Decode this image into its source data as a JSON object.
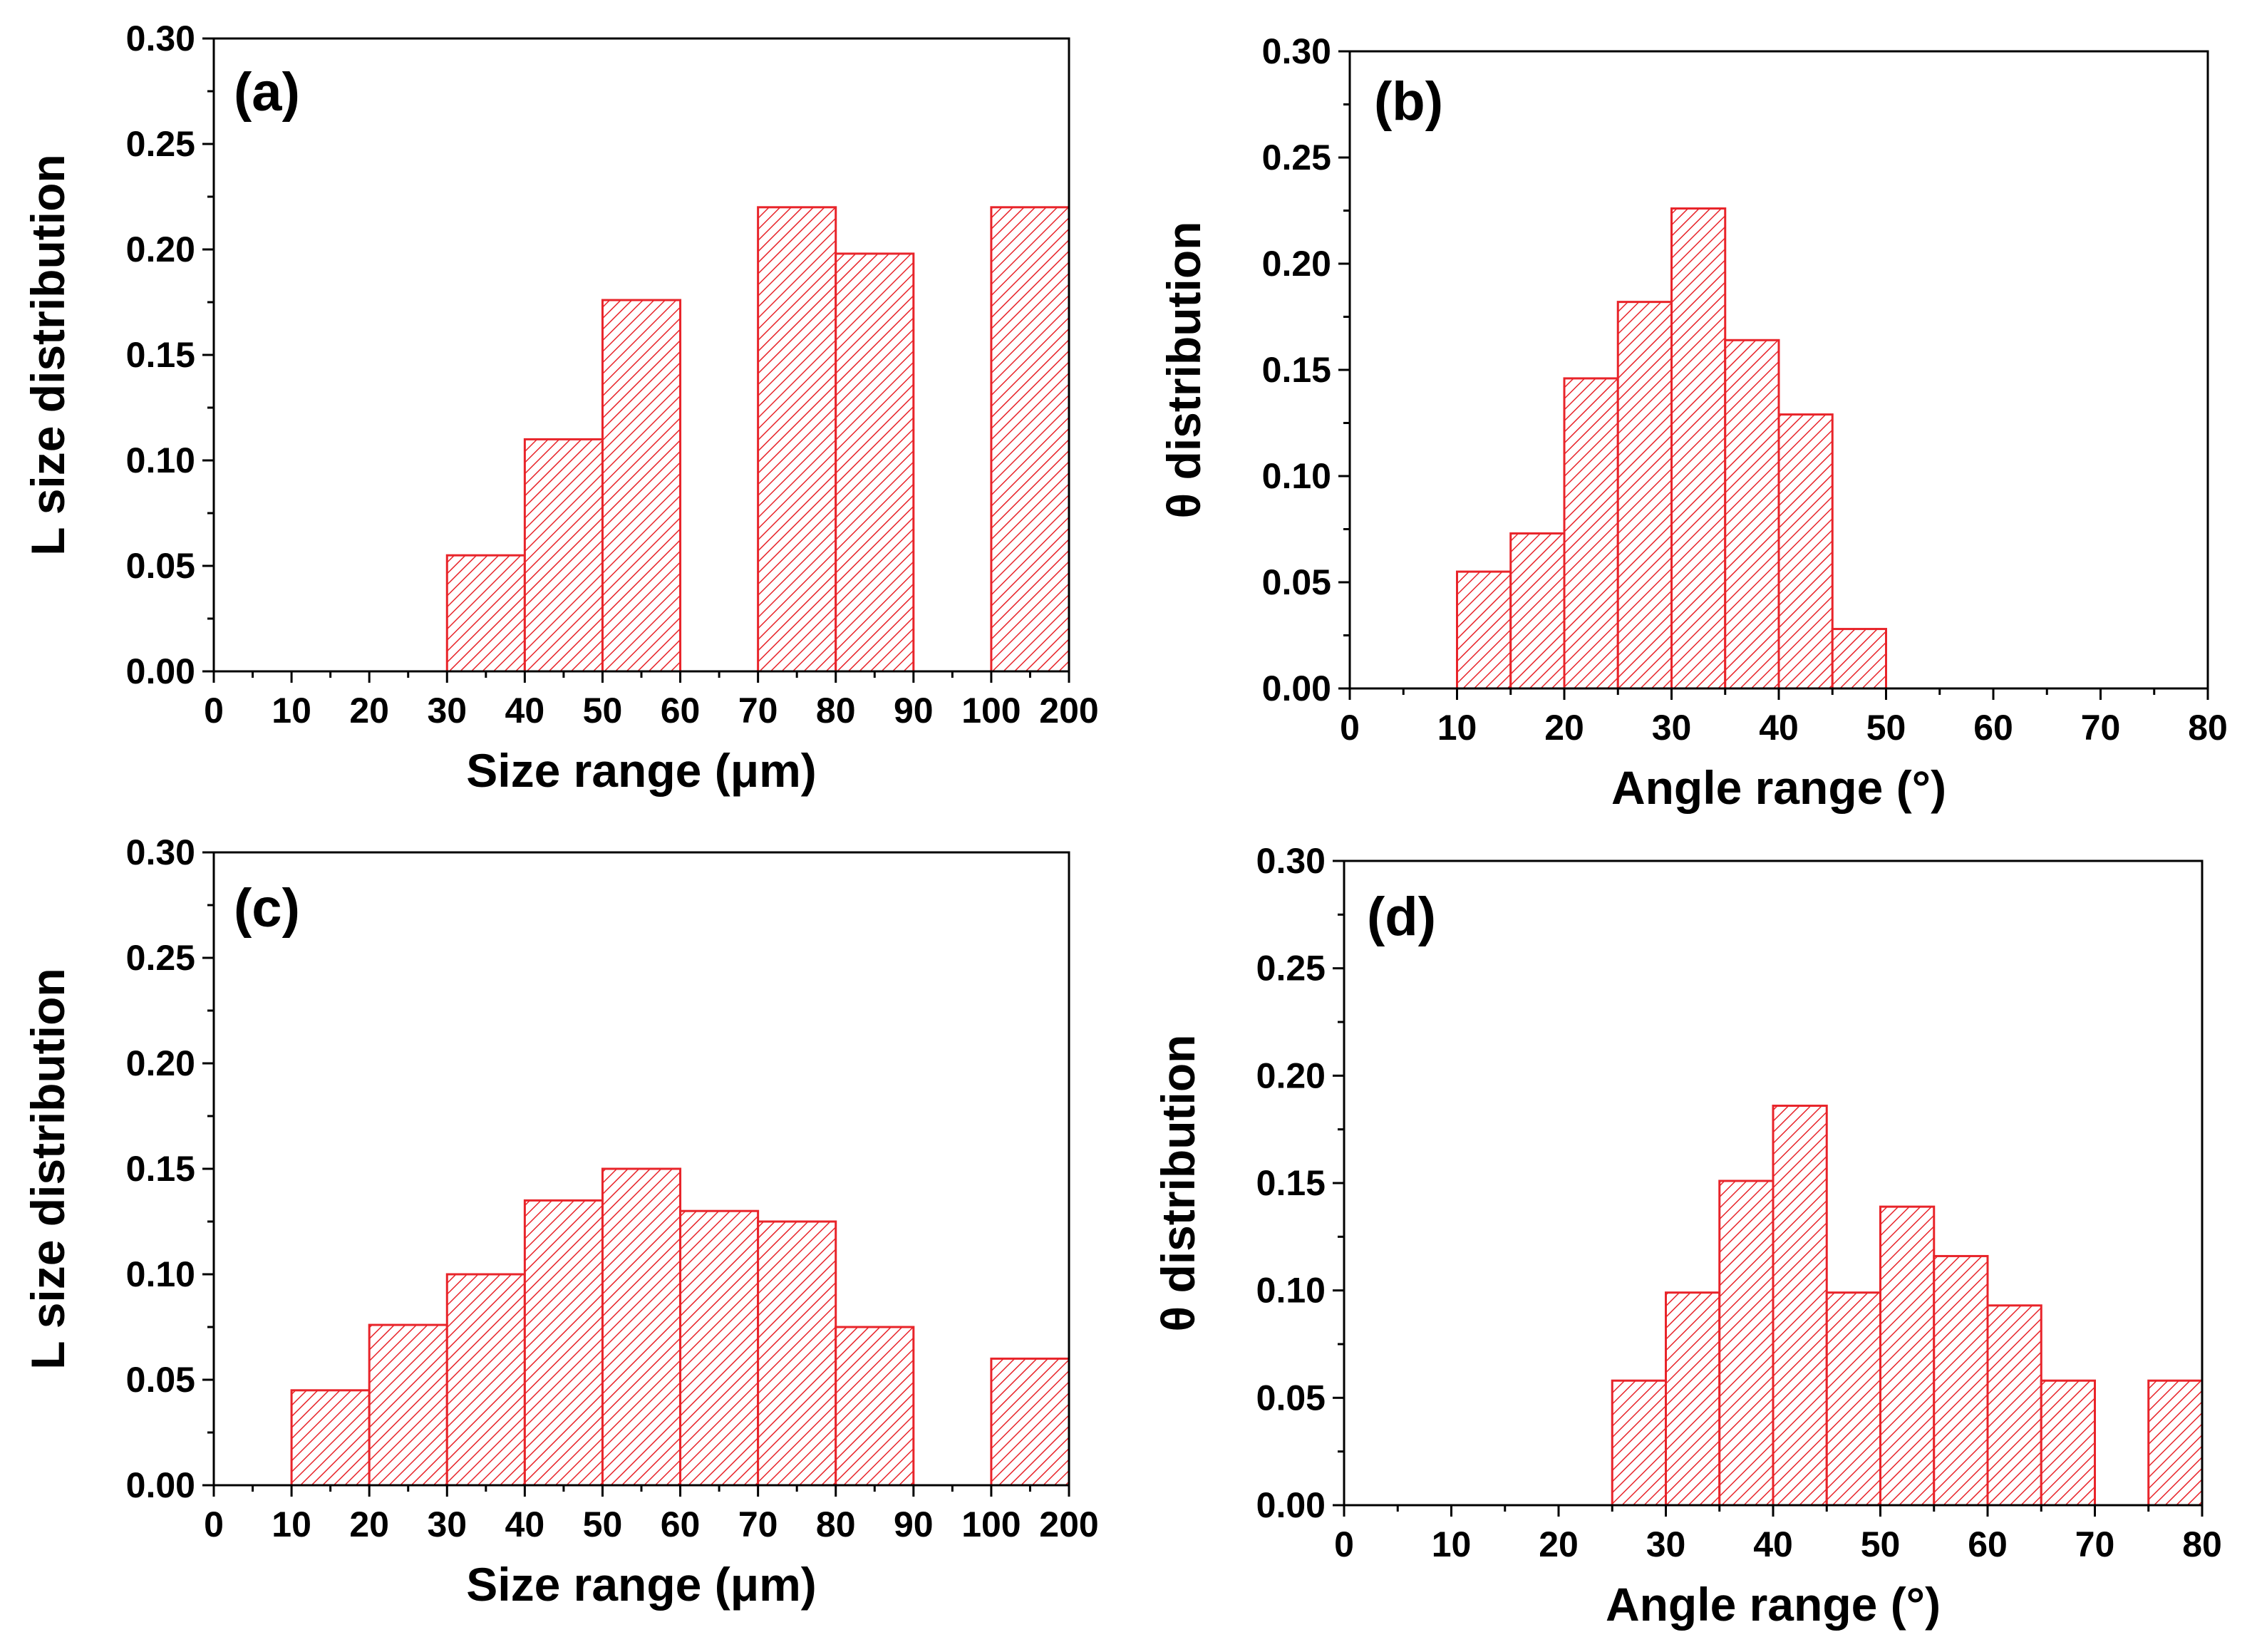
{
  "figure": {
    "colors": {
      "bar_edge": "#e8242a",
      "hatch": "#e8242a",
      "background": "#ffffff",
      "axis": "#000000"
    }
  },
  "chart_data": [
    {
      "type": "bar",
      "panel_label": "(a)",
      "xlabel": "Size range (μm)",
      "ylabel": "L size distribution",
      "ylim": [
        0,
        0.3
      ],
      "yticks": [
        "0.00",
        "0.05",
        "0.10",
        "0.15",
        "0.20",
        "0.25",
        "0.30"
      ],
      "xticks": [
        "0",
        "10",
        "20",
        "30",
        "40",
        "50",
        "60",
        "70",
        "80",
        "90",
        "100",
        "200"
      ],
      "categories": [
        "0-10",
        "10-20",
        "20-30",
        "30-40",
        "40-50",
        "50-60",
        "60-70",
        "70-80",
        "80-90",
        "90-100",
        "100-200"
      ],
      "values": [
        0,
        0,
        0,
        0.055,
        0.11,
        0.176,
        0,
        0.22,
        0.198,
        0,
        0.22
      ],
      "legend": "none",
      "grid": false
    },
    {
      "type": "bar",
      "panel_label": "(b)",
      "xlabel": "Angle range (°)",
      "ylabel": "θ distribution",
      "ylim": [
        0,
        0.3
      ],
      "xlim": [
        0,
        80
      ],
      "yticks": [
        "0.00",
        "0.05",
        "0.10",
        "0.15",
        "0.20",
        "0.25",
        "0.30"
      ],
      "xticks": [
        "0",
        "10",
        "20",
        "30",
        "40",
        "50",
        "60",
        "70",
        "80"
      ],
      "categories": [
        "0-5",
        "5-10",
        "10-15",
        "15-20",
        "20-25",
        "25-30",
        "30-35",
        "35-40",
        "40-45",
        "45-50",
        "50-55",
        "55-60",
        "60-65",
        "65-70",
        "70-75",
        "75-80"
      ],
      "values": [
        0,
        0,
        0.055,
        0.073,
        0.146,
        0.182,
        0.226,
        0.164,
        0.129,
        0.028,
        0,
        0,
        0,
        0,
        0,
        0
      ],
      "legend": "none",
      "grid": false
    },
    {
      "type": "bar",
      "panel_label": "(c)",
      "xlabel": "Size range (μm)",
      "ylabel": "L size distribution",
      "ylim": [
        0,
        0.3
      ],
      "yticks": [
        "0.00",
        "0.05",
        "0.10",
        "0.15",
        "0.20",
        "0.25",
        "0.30"
      ],
      "xticks": [
        "0",
        "10",
        "20",
        "30",
        "40",
        "50",
        "60",
        "70",
        "80",
        "90",
        "100",
        "200"
      ],
      "categories": [
        "0-10",
        "10-20",
        "20-30",
        "30-40",
        "40-50",
        "50-60",
        "60-70",
        "70-80",
        "80-90",
        "90-100",
        "100-200"
      ],
      "values": [
        0,
        0.045,
        0.076,
        0.1,
        0.135,
        0.15,
        0.13,
        0.125,
        0.075,
        0,
        0.06
      ],
      "legend": "none",
      "grid": false
    },
    {
      "type": "bar",
      "panel_label": "(d)",
      "xlabel": "Angle range (°)",
      "ylabel": "θ distribution",
      "ylim": [
        0,
        0.3
      ],
      "xlim": [
        0,
        80
      ],
      "yticks": [
        "0.00",
        "0.05",
        "0.10",
        "0.15",
        "0.20",
        "0.25",
        "0.30"
      ],
      "xticks": [
        "0",
        "10",
        "20",
        "30",
        "40",
        "50",
        "60",
        "70",
        "80"
      ],
      "categories": [
        "0-5",
        "5-10",
        "10-15",
        "15-20",
        "20-25",
        "25-30",
        "30-35",
        "35-40",
        "40-45",
        "45-50",
        "50-55",
        "55-60",
        "60-65",
        "65-70",
        "70-75",
        "75-80"
      ],
      "values": [
        0,
        0,
        0,
        0,
        0,
        0.058,
        0.099,
        0.151,
        0.186,
        0.099,
        0.139,
        0.116,
        0.093,
        0.058,
        0,
        0.058
      ],
      "legend": "none",
      "grid": false
    }
  ]
}
